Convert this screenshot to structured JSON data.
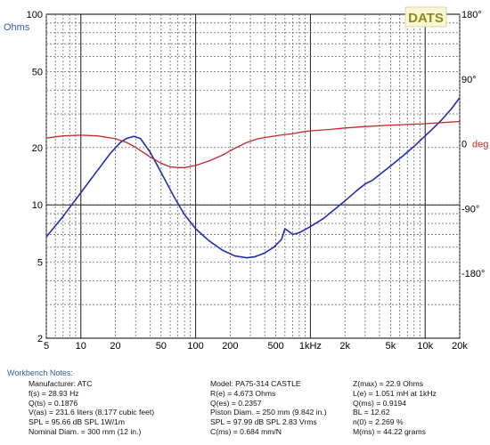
{
  "chart_data": {
    "type": "line",
    "brand": "DATS",
    "x_scale": "log",
    "xlim": [
      5,
      20000
    ],
    "x_ticks": [
      {
        "v": 5,
        "label": "5"
      },
      {
        "v": 10,
        "label": "10"
      },
      {
        "v": 20,
        "label": "20"
      },
      {
        "v": 50,
        "label": "50"
      },
      {
        "v": 100,
        "label": "100"
      },
      {
        "v": 200,
        "label": "200"
      },
      {
        "v": 500,
        "label": "500"
      },
      {
        "v": 1000,
        "label": "1kHz"
      },
      {
        "v": 2000,
        "label": "2k"
      },
      {
        "v": 5000,
        "label": "5k"
      },
      {
        "v": 10000,
        "label": "10k"
      },
      {
        "v": 20000,
        "label": "20k"
      }
    ],
    "y_left": {
      "label": "Ohms",
      "scale": "log",
      "ylim": [
        2,
        100
      ],
      "ticks": [
        {
          "v": 2,
          "label": "2"
        },
        {
          "v": 5,
          "label": "5"
        },
        {
          "v": 10,
          "label": "10"
        },
        {
          "v": 20,
          "label": "20"
        },
        {
          "v": 50,
          "label": "50"
        },
        {
          "v": 100,
          "label": "100"
        }
      ]
    },
    "y_right": {
      "label": "deg",
      "ylim": [
        -270,
        180
      ],
      "ticks": [
        {
          "v": 180,
          "label": "180°"
        },
        {
          "v": 90,
          "label": "90°"
        },
        {
          "v": 0,
          "label": "0"
        },
        {
          "v": -90,
          "label": "-90°"
        },
        {
          "v": -180,
          "label": "-180°"
        }
      ]
    },
    "series": [
      {
        "name": "Impedance",
        "axis": "left",
        "color": "#1f2fae",
        "x": [
          5,
          7,
          10,
          14,
          18,
          22,
          25,
          28.93,
          33,
          40,
          50,
          65,
          80,
          100,
          130,
          170,
          220,
          280,
          330,
          400,
          480,
          560,
          600,
          640,
          700,
          800,
          1000,
          1300,
          1600,
          2000,
          2500,
          3000,
          3500,
          4000,
          5000,
          6500,
          8000,
          10000,
          12000,
          14000,
          17000,
          20000
        ],
        "y": [
          6.8,
          8.7,
          11.6,
          15.2,
          18.6,
          21.2,
          22.3,
          22.9,
          22.3,
          19.0,
          14.8,
          11.0,
          8.9,
          7.5,
          6.5,
          5.8,
          5.4,
          5.28,
          5.35,
          5.6,
          6.0,
          6.6,
          7.5,
          7.3,
          7.0,
          7.15,
          7.7,
          8.5,
          9.4,
          10.5,
          11.8,
          12.9,
          13.5,
          14.4,
          16.0,
          18.2,
          20.3,
          23.0,
          25.5,
          28.0,
          32.0,
          36.5
        ]
      },
      {
        "name": "Phase",
        "axis": "right",
        "color": "#c22a2a",
        "x": [
          5,
          7,
          10,
          14,
          20,
          25,
          30,
          40,
          50,
          60,
          70,
          80,
          100,
          130,
          170,
          220,
          280,
          350,
          450,
          600,
          700,
          800,
          1000,
          1500,
          2000,
          3000,
          5000,
          10000,
          20000
        ],
        "y": [
          8,
          11,
          12,
          11,
          7,
          2,
          -5,
          -18,
          -27,
          -32,
          -33,
          -33,
          -30,
          -24,
          -16,
          -6,
          2,
          7,
          10,
          13,
          14,
          16,
          18,
          20,
          22,
          24,
          26,
          28,
          31
        ]
      }
    ]
  },
  "notes": {
    "title": "Workbench Notes:",
    "col1": [
      "Manufacturer: ATC",
      "f(s) = 28.93 Hz",
      "Q(ts) = 0.1876",
      "V(as) = 231.6 liters  (8.177 cubic feet)",
      "SPL = 95.66 dB SPL  1W/1m",
      "Nominal Diam. = 300 mm (12 in.)"
    ],
    "col2": [
      "Model: PA75-314 CASTLE",
      "R(e) = 4.673 Ohms",
      "Q(es) = 0.2357",
      "Piston Diam. = 250 mm (9.842 in.)",
      "SPL = 97.99 dB SPL  2.83 Vrms",
      "C(ms) = 0.684 mm/N"
    ],
    "col3": [
      "Z(max) = 22.9 Ohms",
      "L(e) = 1.051 mH at 1kHz",
      "Q(ms) = 0.9194",
      "BL = 12.62",
      "n(0) = 2.269 %",
      "M(ms) = 44.22 grams"
    ]
  }
}
